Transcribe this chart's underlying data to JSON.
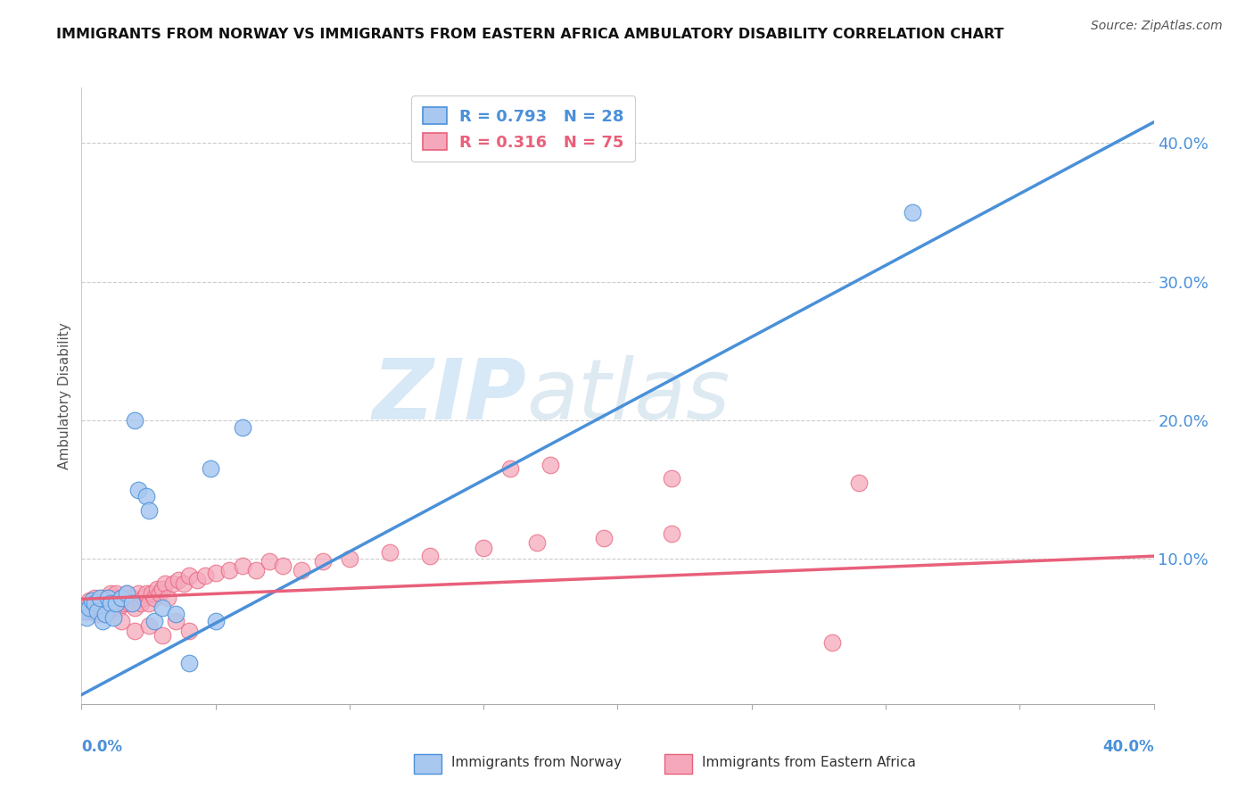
{
  "title": "IMMIGRANTS FROM NORWAY VS IMMIGRANTS FROM EASTERN AFRICA AMBULATORY DISABILITY CORRELATION CHART",
  "source": "Source: ZipAtlas.com",
  "ylabel": "Ambulatory Disability",
  "xlim": [
    0.0,
    0.4
  ],
  "ylim": [
    -0.005,
    0.44
  ],
  "yticks": [
    0.0,
    0.1,
    0.2,
    0.3,
    0.4
  ],
  "ytick_labels": [
    "",
    "10.0%",
    "20.0%",
    "30.0%",
    "40.0%"
  ],
  "norway_R": 0.793,
  "norway_N": 28,
  "eastern_africa_R": 0.316,
  "eastern_africa_N": 75,
  "norway_color": "#a8c8f0",
  "eastern_africa_color": "#f5a8bc",
  "norway_line_color": "#4a90d9",
  "eastern_africa_line_color": "#e8607a",
  "legend_label_norway": "Immigrants from Norway",
  "legend_label_eastern_africa": "Immigrants from Eastern Africa",
  "watermark_zip": "ZIP",
  "watermark_atlas": "atlas",
  "norway_line_x0": 0.0,
  "norway_line_y0": 0.002,
  "norway_line_x1": 0.4,
  "norway_line_y1": 0.415,
  "ea_line_x0": 0.0,
  "ea_line_y0": 0.071,
  "ea_line_x1": 0.4,
  "ea_line_y1": 0.102,
  "norway_x": [
    0.001,
    0.002,
    0.003,
    0.004,
    0.005,
    0.006,
    0.007,
    0.008,
    0.009,
    0.01,
    0.011,
    0.012,
    0.013,
    0.015,
    0.017,
    0.019,
    0.021,
    0.024,
    0.027,
    0.03,
    0.035,
    0.04,
    0.05,
    0.06,
    0.02,
    0.025,
    0.31,
    0.048
  ],
  "norway_y": [
    0.062,
    0.058,
    0.065,
    0.07,
    0.068,
    0.062,
    0.072,
    0.055,
    0.06,
    0.072,
    0.068,
    0.058,
    0.068,
    0.072,
    0.075,
    0.068,
    0.15,
    0.145,
    0.055,
    0.065,
    0.06,
    0.025,
    0.055,
    0.195,
    0.2,
    0.135,
    0.35,
    0.165
  ],
  "ea_x": [
    0.001,
    0.002,
    0.003,
    0.003,
    0.004,
    0.004,
    0.005,
    0.005,
    0.006,
    0.006,
    0.007,
    0.007,
    0.008,
    0.008,
    0.009,
    0.009,
    0.01,
    0.01,
    0.011,
    0.011,
    0.012,
    0.012,
    0.013,
    0.013,
    0.014,
    0.015,
    0.016,
    0.017,
    0.018,
    0.019,
    0.02,
    0.021,
    0.022,
    0.023,
    0.024,
    0.025,
    0.026,
    0.027,
    0.028,
    0.029,
    0.03,
    0.031,
    0.032,
    0.034,
    0.036,
    0.038,
    0.04,
    0.043,
    0.046,
    0.05,
    0.055,
    0.06,
    0.065,
    0.07,
    0.075,
    0.082,
    0.09,
    0.1,
    0.115,
    0.13,
    0.15,
    0.17,
    0.195,
    0.22,
    0.015,
    0.02,
    0.025,
    0.03,
    0.035,
    0.04,
    0.16,
    0.28,
    0.29,
    0.175,
    0.22
  ],
  "ea_y": [
    0.065,
    0.062,
    0.065,
    0.07,
    0.062,
    0.068,
    0.065,
    0.072,
    0.06,
    0.068,
    0.062,
    0.07,
    0.065,
    0.072,
    0.06,
    0.068,
    0.065,
    0.072,
    0.068,
    0.075,
    0.065,
    0.072,
    0.068,
    0.075,
    0.065,
    0.072,
    0.068,
    0.075,
    0.068,
    0.072,
    0.065,
    0.075,
    0.068,
    0.072,
    0.075,
    0.068,
    0.075,
    0.072,
    0.078,
    0.075,
    0.078,
    0.082,
    0.072,
    0.082,
    0.085,
    0.082,
    0.088,
    0.085,
    0.088,
    0.09,
    0.092,
    0.095,
    0.092,
    0.098,
    0.095,
    0.092,
    0.098,
    0.1,
    0.105,
    0.102,
    0.108,
    0.112,
    0.115,
    0.118,
    0.055,
    0.048,
    0.052,
    0.045,
    0.055,
    0.048,
    0.165,
    0.04,
    0.155,
    0.168,
    0.158
  ]
}
